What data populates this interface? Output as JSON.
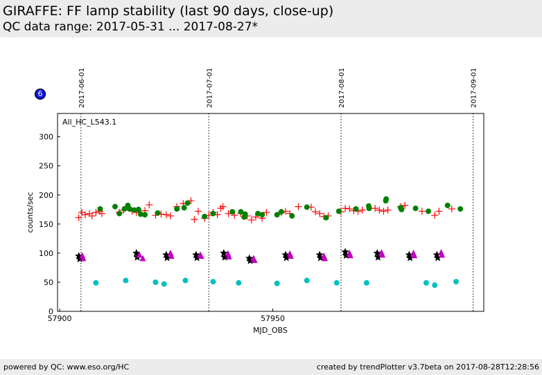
{
  "header": {
    "title": "GIRAFFE: FF lamp stability (last 90 days, close-up)",
    "subtitle": "QC data range: 2017-05-31 ... 2017-08-27*"
  },
  "badge": {
    "number": "6",
    "color": "#0a14d8"
  },
  "footer": {
    "left": "powered by QC: www.eso.org/HC",
    "right": "created by trendPlotter v3.7beta on 2017-08-28T12:28:56"
  },
  "chart_data": {
    "type": "scatter",
    "panel_label": "All_HC_L543.1",
    "xlabel": "MJD_OBS",
    "ylabel": "counts/sec",
    "xlim": [
      57899.5,
      57999.5
    ],
    "ylim": [
      0,
      340
    ],
    "x_ticks": [
      57900,
      57950
    ],
    "y_ticks": [
      0,
      50,
      100,
      150,
      200,
      250,
      300
    ],
    "date_markers": [
      {
        "label": "2017-06-01",
        "mjd": 57905
      },
      {
        "label": "2017-07-01",
        "mjd": 57935
      },
      {
        "label": "2017-08-01",
        "mjd": 57966
      },
      {
        "label": "2017-09-01",
        "mjd": 57997
      }
    ],
    "colors": {
      "red_plus": "#ff0000",
      "green_circle": "#008000",
      "black_star": "#000000",
      "magenta_triangle": "#c000c0",
      "cyan_circle": "#00c0c0"
    },
    "series": [
      {
        "marker": "plus",
        "color": "#ff0000",
        "points": [
          [
            57904.5,
            161
          ],
          [
            57905.2,
            170
          ],
          [
            57906,
            166
          ],
          [
            57907,
            168
          ],
          [
            57907.6,
            164
          ],
          [
            57908.5,
            170
          ],
          [
            57909.4,
            172
          ],
          [
            57909.9,
            168
          ],
          [
            57914,
            170
          ],
          [
            57915,
            174
          ],
          [
            57917,
            172
          ],
          [
            57918,
            170
          ],
          [
            57920,
            173
          ],
          [
            57921,
            183
          ],
          [
            57922.5,
            165
          ],
          [
            57923.8,
            167
          ],
          [
            57925,
            166
          ],
          [
            57926,
            164
          ],
          [
            57927.5,
            180
          ],
          [
            57929,
            185
          ],
          [
            57930.8,
            190
          ],
          [
            57931.6,
            158
          ],
          [
            57932.5,
            172
          ],
          [
            57934,
            160
          ],
          [
            57935,
            165
          ],
          [
            57936,
            170
          ],
          [
            57937,
            166
          ],
          [
            57937.8,
            177
          ],
          [
            57938.3,
            180
          ],
          [
            57939.6,
            168
          ],
          [
            57941,
            165
          ],
          [
            57942.5,
            168
          ],
          [
            57944,
            164
          ],
          [
            57945,
            157
          ],
          [
            57946,
            162
          ],
          [
            57947.5,
            160
          ],
          [
            57948.5,
            170
          ],
          [
            57952,
            170
          ],
          [
            57953,
            172
          ],
          [
            57954,
            168
          ],
          [
            57956,
            180
          ],
          [
            57959,
            179
          ],
          [
            57960,
            171
          ],
          [
            57961,
            168
          ],
          [
            57962,
            163
          ],
          [
            57963,
            164
          ],
          [
            57966,
            171
          ],
          [
            57967,
            177
          ],
          [
            57968,
            176
          ],
          [
            57969,
            173
          ],
          [
            57970,
            172
          ],
          [
            57971,
            174
          ],
          [
            57974,
            177
          ],
          [
            57975,
            174
          ],
          [
            57976,
            172
          ],
          [
            57977,
            174
          ],
          [
            57980,
            180
          ],
          [
            57981,
            182
          ],
          [
            57985,
            172
          ],
          [
            57988,
            165
          ],
          [
            57989,
            172
          ],
          [
            57992,
            176
          ]
        ]
      },
      {
        "marker": "circle",
        "color": "#008000",
        "points": [
          [
            57909.5,
            176
          ],
          [
            57913,
            180
          ],
          [
            57914,
            168
          ],
          [
            57915.2,
            176
          ],
          [
            57916,
            182
          ],
          [
            57916.4,
            176
          ],
          [
            57917.5,
            174
          ],
          [
            57918.5,
            175
          ],
          [
            57919,
            167
          ],
          [
            57920,
            166
          ],
          [
            57923,
            169
          ],
          [
            57927.5,
            176
          ],
          [
            57929.2,
            178
          ],
          [
            57930,
            186
          ],
          [
            57934,
            163
          ],
          [
            57936,
            168
          ],
          [
            57940.5,
            171
          ],
          [
            57942.5,
            171
          ],
          [
            57943.3,
            162
          ],
          [
            57943.5,
            167
          ],
          [
            57946.5,
            168
          ],
          [
            57947.5,
            166
          ],
          [
            57951,
            166
          ],
          [
            57952,
            171
          ],
          [
            57954.5,
            164
          ],
          [
            57958,
            179
          ],
          [
            57962.5,
            161
          ],
          [
            57965.5,
            172
          ],
          [
            57969.5,
            176
          ],
          [
            57972.5,
            181
          ],
          [
            57972.6,
            177
          ],
          [
            57976.5,
            190
          ],
          [
            57976.6,
            193
          ],
          [
            57980,
            178
          ],
          [
            57980.2,
            175
          ],
          [
            57983.5,
            177
          ],
          [
            57986.5,
            172
          ],
          [
            57991,
            182
          ],
          [
            57994,
            176
          ]
        ]
      },
      {
        "marker": "star",
        "color": "#000000",
        "points": [
          [
            57904.5,
            95
          ],
          [
            57904.7,
            90
          ],
          [
            57918,
            100
          ],
          [
            57918.2,
            93
          ],
          [
            57925,
            97
          ],
          [
            57925.2,
            92
          ],
          [
            57932,
            97
          ],
          [
            57932.2,
            92
          ],
          [
            57938.5,
            100
          ],
          [
            57938.7,
            93
          ],
          [
            57944.5,
            91
          ],
          [
            57944.7,
            87
          ],
          [
            57953,
            97
          ],
          [
            57953.2,
            92
          ],
          [
            57961,
            97
          ],
          [
            57961.2,
            92
          ],
          [
            57967,
            102
          ],
          [
            57967.2,
            96
          ],
          [
            57974.5,
            100
          ],
          [
            57974.7,
            93
          ],
          [
            57982,
            97
          ],
          [
            57982.2,
            92
          ],
          [
            57988.5,
            97
          ],
          [
            57988.7,
            92
          ]
        ]
      },
      {
        "marker": "triangle",
        "color": "#c000c0",
        "points": [
          [
            57905.3,
            96
          ],
          [
            57905.5,
            91
          ],
          [
            57918.7,
            97
          ],
          [
            57919.5,
            91
          ],
          [
            57926,
            100
          ],
          [
            57926.2,
            95
          ],
          [
            57933,
            97
          ],
          [
            57933.2,
            95
          ],
          [
            57939.5,
            99
          ],
          [
            57939.7,
            94
          ],
          [
            57945.5,
            91
          ],
          [
            57945.7,
            88
          ],
          [
            57954,
            99
          ],
          [
            57954.2,
            95
          ],
          [
            57962,
            95
          ],
          [
            57962.2,
            91
          ],
          [
            57968,
            100
          ],
          [
            57968.2,
            96
          ],
          [
            57975.5,
            101
          ],
          [
            57975.7,
            97
          ],
          [
            57983,
            100
          ],
          [
            57983.2,
            96
          ],
          [
            57989.5,
            101
          ],
          [
            57989.7,
            97
          ]
        ]
      },
      {
        "marker": "circle",
        "color": "#00c0c0",
        "points": [
          [
            57908.5,
            49
          ],
          [
            57915.5,
            53
          ],
          [
            57922.5,
            50
          ],
          [
            57924.5,
            47
          ],
          [
            57929.5,
            53
          ],
          [
            57936,
            51
          ],
          [
            57942,
            49
          ],
          [
            57951,
            48
          ],
          [
            57958,
            53
          ],
          [
            57965,
            49
          ],
          [
            57972,
            49
          ],
          [
            57986,
            49
          ],
          [
            57988,
            45
          ],
          [
            57993,
            51
          ]
        ]
      }
    ]
  }
}
